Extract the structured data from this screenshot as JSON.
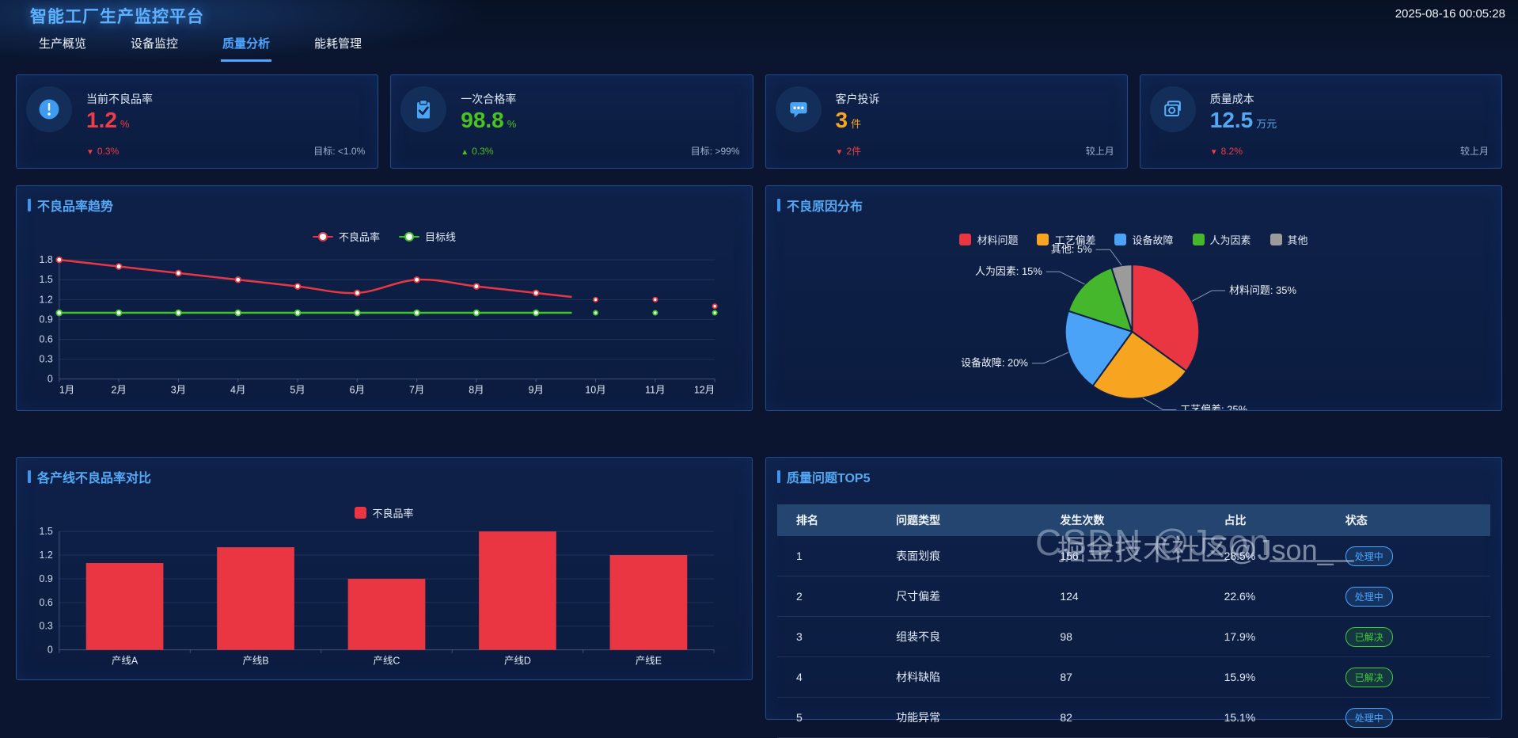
{
  "header": {
    "app_title": "智能工厂生产监控平台",
    "timestamp": "2025-08-16 00:05:28"
  },
  "nav": {
    "tabs": [
      {
        "label": "生产概览",
        "active": false
      },
      {
        "label": "设备监控",
        "active": false
      },
      {
        "label": "质量分析",
        "active": true
      },
      {
        "label": "能耗管理",
        "active": false
      }
    ]
  },
  "kpi_cards": [
    {
      "icon": "alert-circle-icon",
      "title": "当前不良品率",
      "value": "1.2",
      "unit": "%",
      "value_color": "#f13b45",
      "change_arrow": "▼",
      "change_text": "0.3%",
      "change_color": "#f13b45",
      "note": "目标: <1.0%"
    },
    {
      "icon": "clipboard-check-icon",
      "title": "一次合格率",
      "value": "98.8",
      "unit": "%",
      "value_color": "#49c41f",
      "change_arrow": "▲",
      "change_text": "0.3%",
      "change_color": "#49c41f",
      "note": "目标: >99%"
    },
    {
      "icon": "chat-bubble-icon",
      "title": "客户投诉",
      "value": "3",
      "unit": "件",
      "value_color": "#f7a520",
      "change_arrow": "▼",
      "change_text": "2件",
      "change_color": "#f13b45",
      "note": "较上月"
    },
    {
      "icon": "cost-icon",
      "title": "质量成本",
      "value": "12.5",
      "unit": "万元",
      "value_color": "#53a8f3",
      "change_arrow": "▼",
      "change_text": "8.2%",
      "change_color": "#f13b45",
      "note": "较上月"
    }
  ],
  "chart_data": [
    {
      "id": "defect-trend",
      "type": "line",
      "title": "不良品率趋势",
      "categories": [
        "1月",
        "2月",
        "3月",
        "4月",
        "5月",
        "6月",
        "7月",
        "8月",
        "9月",
        "10月",
        "11月",
        "12月"
      ],
      "series": [
        {
          "name": "不良品率",
          "color": "#ea3642",
          "values": [
            1.8,
            1.7,
            1.6,
            1.5,
            1.4,
            1.3,
            1.5,
            1.4,
            1.3,
            1.2,
            1.2,
            1.1
          ]
        },
        {
          "name": "目标线",
          "color": "#3ec728",
          "values": [
            1.0,
            1.0,
            1.0,
            1.0,
            1.0,
            1.0,
            1.0,
            1.0,
            1.0,
            1.0,
            1.0,
            1.0
          ]
        }
      ],
      "ylim": [
        0,
        1.8
      ],
      "ytick_step": 0.3,
      "line_drawn_until_month": 9.6,
      "legend_position": "top",
      "grid": true
    },
    {
      "id": "defect-causes",
      "type": "pie",
      "title": "不良原因分布",
      "slices": [
        {
          "label": "材料问题",
          "value": 35,
          "color": "#ea3642"
        },
        {
          "label": "工艺偏差",
          "value": 25,
          "color": "#f7a520"
        },
        {
          "label": "设备故障",
          "value": 20,
          "color": "#4ba3f7"
        },
        {
          "label": "人为因素",
          "value": 15,
          "color": "#45b72c"
        },
        {
          "label": "其他",
          "value": 5,
          "color": "#9b9b9b"
        }
      ],
      "label_format": "{label}: {value}%",
      "legend_position": "top"
    },
    {
      "id": "line-defect-compare",
      "type": "bar",
      "title": "各产线不良品率对比",
      "categories": [
        "产线A",
        "产线B",
        "产线C",
        "产线D",
        "产线E"
      ],
      "series": [
        {
          "name": "不良品率",
          "color": "#ea3642",
          "values": [
            1.1,
            1.3,
            0.9,
            1.5,
            1.2
          ]
        }
      ],
      "ylim": [
        0,
        1.5
      ],
      "ytick_step": 0.3,
      "legend_position": "top",
      "grid": true
    },
    {
      "id": "quality-top5",
      "type": "table",
      "title": "质量问题TOP5",
      "columns": [
        "排名",
        "问题类型",
        "发生次数",
        "占比",
        "状态"
      ],
      "rows": [
        {
          "rank": "1",
          "issue": "表面划痕",
          "count": "156",
          "ratio": "28.5%",
          "status": "处理中"
        },
        {
          "rank": "2",
          "issue": "尺寸偏差",
          "count": "124",
          "ratio": "22.6%",
          "status": "处理中"
        },
        {
          "rank": "3",
          "issue": "组装不良",
          "count": "98",
          "ratio": "17.9%",
          "status": "已解决"
        },
        {
          "rank": "4",
          "issue": "材料缺陷",
          "count": "87",
          "ratio": "15.9%",
          "status": "已解决"
        },
        {
          "rank": "5",
          "issue": "功能异常",
          "count": "82",
          "ratio": "15.1%",
          "status": "处理中"
        }
      ],
      "status_colors": {
        "处理中": "#4aa8ff",
        "已解决": "#43c93c"
      }
    }
  ],
  "watermarks": [
    {
      "text": "CSDN @Json____"
    },
    {
      "text": "掘金技术社区@Json_"
    }
  ],
  "colors": {
    "accent": "#4da6ff",
    "page_bg": "#0b1530",
    "panel_border": "#234b88",
    "red": "#ea3642",
    "green": "#3ec728",
    "orange": "#f7a520"
  }
}
